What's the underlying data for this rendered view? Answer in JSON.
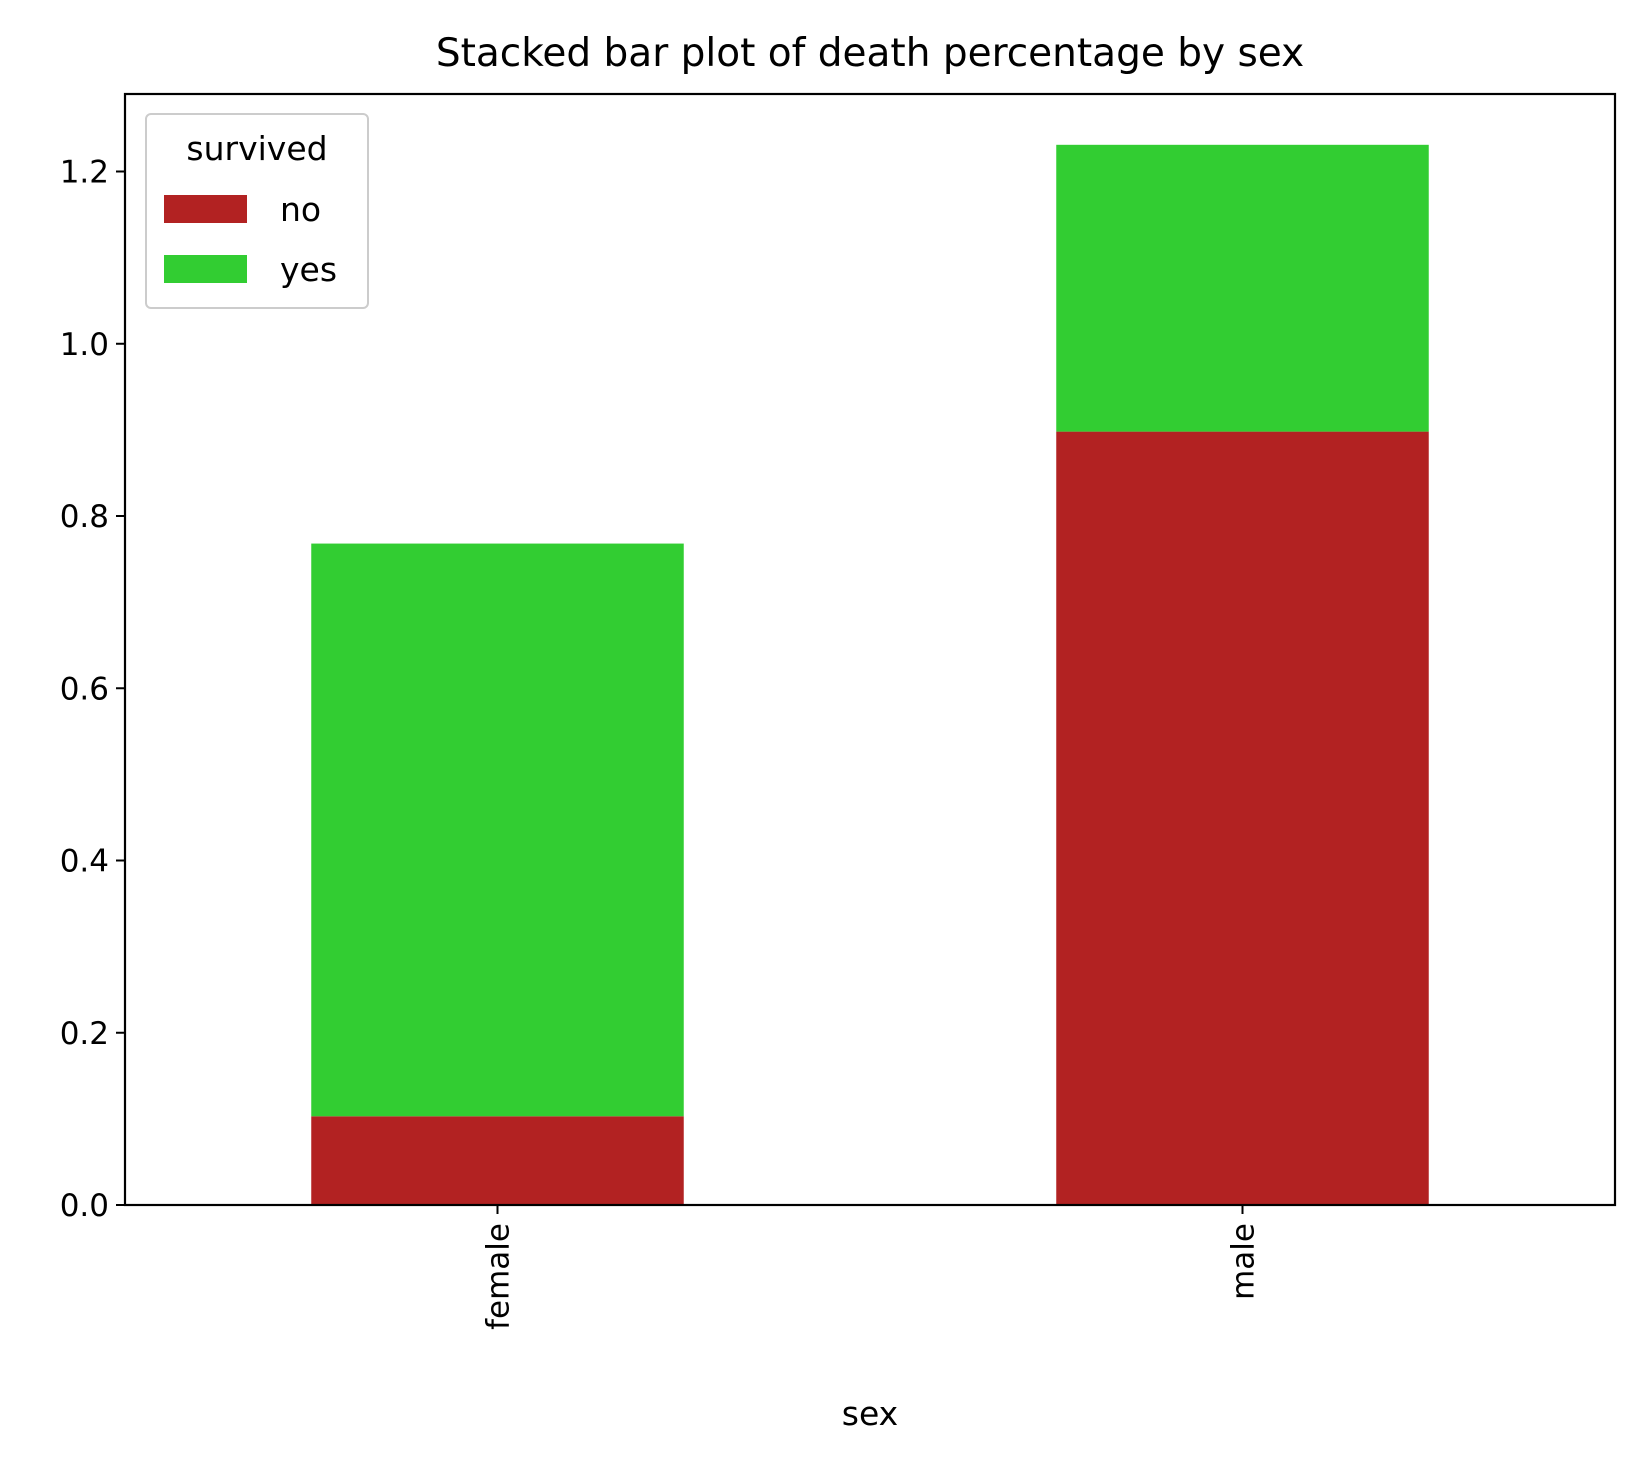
{
  "chart_data": {
    "type": "bar",
    "stacked": true,
    "title": "Stacked bar plot of death percentage by sex",
    "xlabel": "sex",
    "ylabel": "",
    "categories": [
      "female",
      "male"
    ],
    "series": [
      {
        "name": "no",
        "color": "#b22222",
        "values": [
          0.103,
          0.898
        ]
      },
      {
        "name": "yes",
        "color": "#32cd32",
        "values": [
          0.665,
          0.333
        ]
      }
    ],
    "ylim": [
      0,
      1.29
    ],
    "yticks": [
      0.0,
      0.2,
      0.4,
      0.6,
      0.8,
      1.0,
      1.2
    ],
    "ytick_labels": [
      "0.0",
      "0.2",
      "0.4",
      "0.6",
      "0.8",
      "1.0",
      "1.2"
    ],
    "xtick_rotation": "vertical",
    "grid": false,
    "legend": {
      "title": "survived",
      "position": "upper left"
    }
  }
}
